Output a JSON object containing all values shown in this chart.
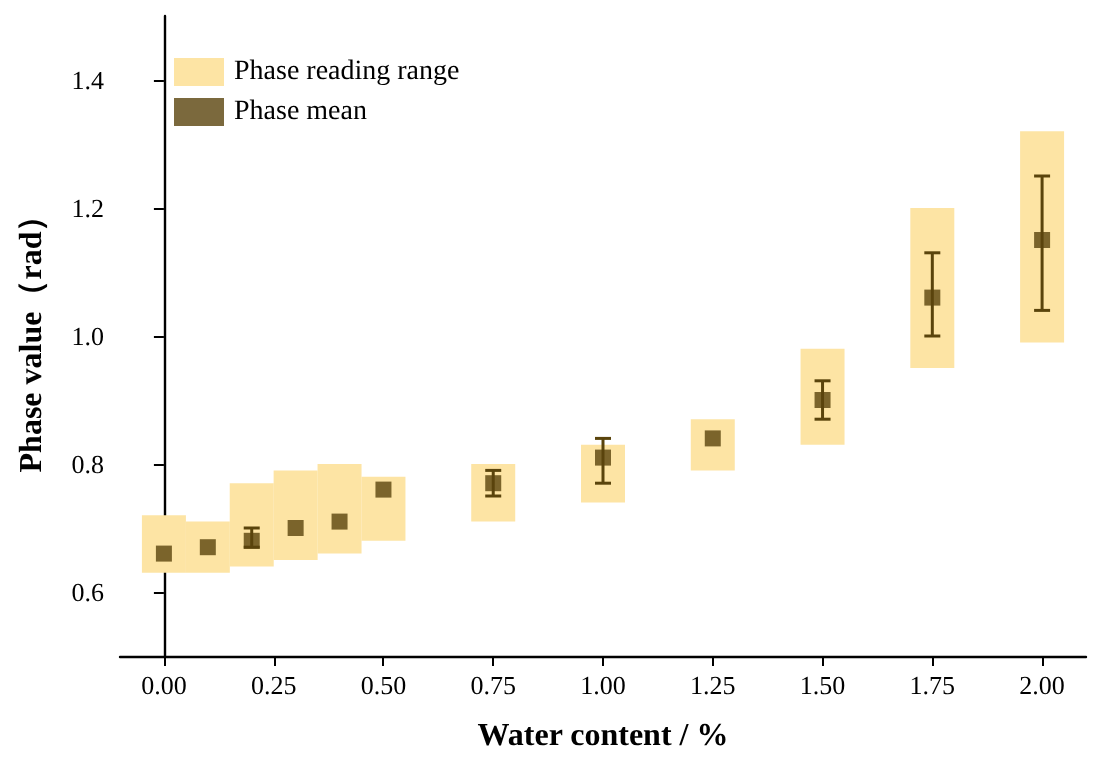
{
  "chart_data": {
    "type": "scatter",
    "xlabel": "Water content / %",
    "ylabel": "Phase value（rad）",
    "x": [
      0,
      0.1,
      0.2,
      0.3,
      0.4,
      0.5,
      0.75,
      1.0,
      1.25,
      1.5,
      1.75,
      2.0
    ],
    "series": [
      {
        "type": "bar",
        "name": "Phase reading range",
        "color": "#fde4a4",
        "base": [
          0.63,
          0.63,
          0.64,
          0.65,
          0.66,
          0.68,
          0.71,
          0.74,
          0.79,
          0.83,
          0.95,
          0.99
        ],
        "values": [
          0.09,
          0.08,
          0.13,
          0.14,
          0.14,
          0.1,
          0.09,
          0.09,
          0.08,
          0.15,
          0.25,
          0.33
        ]
      },
      {
        "name": "Phase mean",
        "color": "#5a440c",
        "values": [
          0.66,
          0.67,
          0.68,
          0.7,
          0.71,
          0.76,
          0.77,
          0.81,
          0.84,
          0.9,
          1.06,
          1.15
        ],
        "errors": [
          null,
          null,
          [
            0.67,
            0.7
          ],
          null,
          null,
          null,
          [
            0.75,
            0.79
          ],
          [
            0.77,
            0.84
          ],
          null,
          [
            0.87,
            0.93
          ],
          [
            1.0,
            1.13
          ],
          [
            1.04,
            1.25
          ]
        ]
      }
    ],
    "xlim": [
      -0.1,
      2.1
    ],
    "xticks": [
      {
        "value": 0,
        "label": "0.00"
      },
      {
        "value": 0.25,
        "label": "0.25"
      },
      {
        "value": 0.5,
        "label": "0.50"
      },
      {
        "value": 0.75,
        "label": "0.75"
      },
      {
        "value": 1,
        "label": "1.00"
      },
      {
        "value": 1.25,
        "label": "1.25"
      },
      {
        "value": 1.5,
        "label": "1.50"
      },
      {
        "value": 1.75,
        "label": "1.75"
      },
      {
        "value": 2,
        "label": "2.00"
      }
    ],
    "ylim": [
      0.5,
      1.5
    ],
    "yticks": [
      0.6,
      0.8,
      {
        "value": 1,
        "label": "1.0"
      },
      1.2,
      1.4
    ],
    "marker": "square",
    "legend": "top left",
    "grid": false
  }
}
